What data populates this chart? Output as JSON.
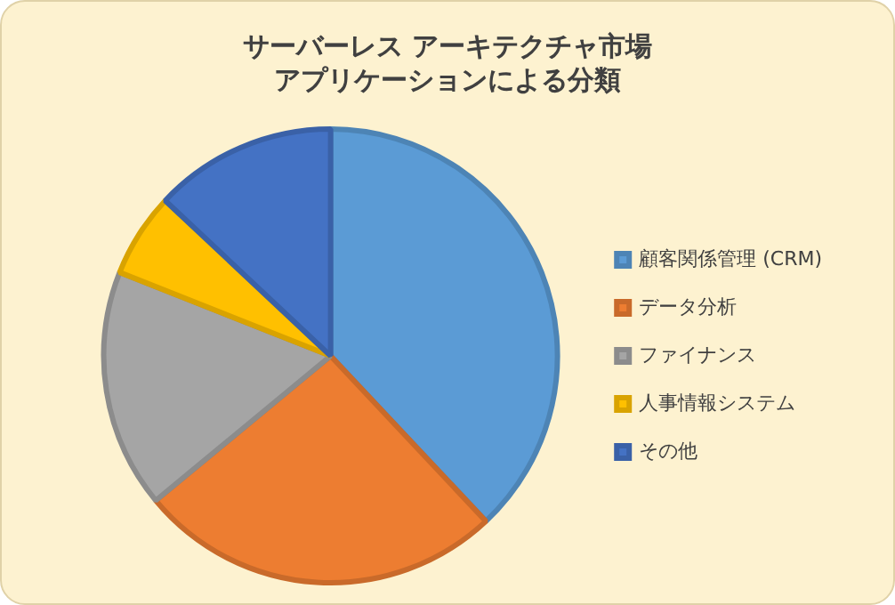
{
  "chart_data": {
    "type": "pie",
    "title": "サーバーレス アーキテクチャ市場アプリケーションによる分類",
    "categories": [
      "顧客関係管理 (CRM)",
      "データ分析",
      "ファイナンス",
      "人事情報システム",
      "その他"
    ],
    "values": [
      38,
      26,
      17,
      6,
      13
    ],
    "colors": [
      "#5b9bd5",
      "#ed7d31",
      "#a5a5a5",
      "#ffc000",
      "#4472c4"
    ],
    "legend": "right"
  }
}
